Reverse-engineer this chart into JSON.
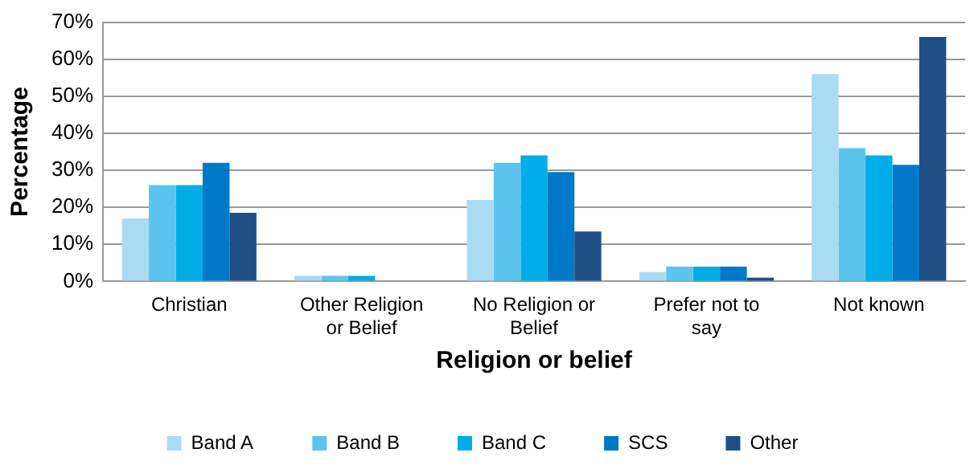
{
  "chart_data": {
    "type": "bar",
    "xlabel": "Religion or belief",
    "ylabel": "Percentage",
    "categories": [
      "Christian",
      "Other Religion or Belief",
      "No Religion or Belief",
      "Prefer not to say",
      "Not known"
    ],
    "series": [
      {
        "name": "Band A",
        "color": "#a9dcf3",
        "values": [
          17,
          1.5,
          22,
          2.5,
          56
        ]
      },
      {
        "name": "Band B",
        "color": "#5bc5ef",
        "values": [
          26,
          1.5,
          32,
          4,
          36
        ]
      },
      {
        "name": "Band C",
        "color": "#00ade6",
        "values": [
          26,
          1.5,
          34,
          4,
          34
        ]
      },
      {
        "name": "SCS",
        "color": "#0079c8",
        "values": [
          32,
          0,
          29.5,
          4,
          31.5
        ]
      },
      {
        "name": "Other",
        "color": "#1f4e85",
        "values": [
          18.5,
          0,
          13.5,
          1,
          66
        ]
      }
    ],
    "ylim": [
      0,
      70
    ],
    "yticks": [
      {
        "value": 0,
        "label": "0%"
      },
      {
        "value": 10,
        "label": "10%"
      },
      {
        "value": 20,
        "label": "20%"
      },
      {
        "value": 30,
        "label": "30%"
      },
      {
        "value": 40,
        "label": "40%"
      },
      {
        "value": 50,
        "label": "50%"
      },
      {
        "value": 60,
        "label": "60%"
      },
      {
        "value": 70,
        "label": "70%"
      }
    ],
    "grid": "y",
    "legend": "bottom"
  }
}
